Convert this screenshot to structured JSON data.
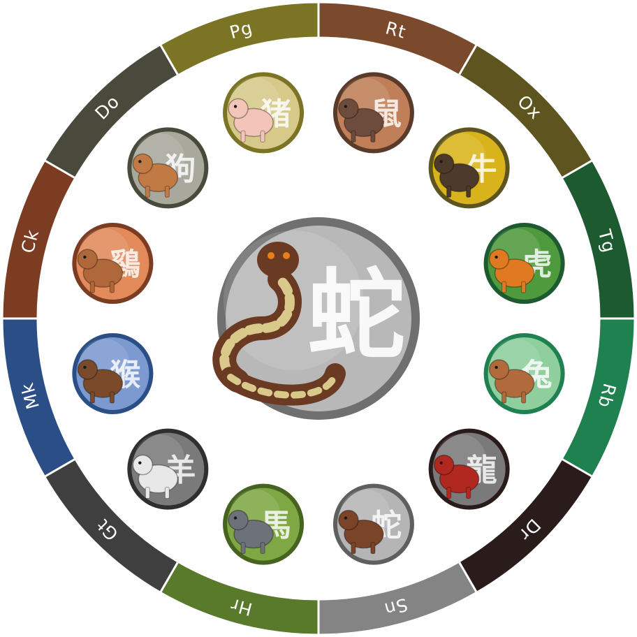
{
  "wheel": {
    "segments": [
      {
        "label": "Rt",
        "color": "#7b4a2d"
      },
      {
        "label": "Ox",
        "color": "#5e5420"
      },
      {
        "label": "Tg",
        "color": "#1d5a30"
      },
      {
        "label": "Rb",
        "color": "#1f8050"
      },
      {
        "label": "Dr",
        "color": "#2b1c1c"
      },
      {
        "label": "Sn",
        "color": "#848484"
      },
      {
        "label": "Hr",
        "color": "#587a2a"
      },
      {
        "label": "Gt",
        "color": "#3f3f3f"
      },
      {
        "label": "Mk",
        "color": "#2c4e86"
      },
      {
        "label": "Ck",
        "color": "#7c3c22"
      },
      {
        "label": "Do",
        "color": "#4a4a3c"
      },
      {
        "label": "Pg",
        "color": "#7b7424"
      }
    ]
  },
  "medals": [
    {
      "animal": "rat",
      "char": "鼠",
      "bg": "#c07f58",
      "ring": "#5a3a28",
      "body": "#6d4c3d"
    },
    {
      "animal": "ox",
      "char": "牛",
      "bg": "#d9b31b",
      "ring": "#5e5420",
      "body": "#4e3a2a"
    },
    {
      "animal": "tiger",
      "char": "虎",
      "bg": "#4f9a3d",
      "ring": "#1d5a30",
      "body": "#e07a22"
    },
    {
      "animal": "rabbit",
      "char": "兔",
      "bg": "#8fcf9e",
      "ring": "#1f8050",
      "body": "#b06a3c"
    },
    {
      "animal": "dragon",
      "char": "龍",
      "bg": "#7a7a7a",
      "ring": "#2b1c1c",
      "body": "#b0281f"
    },
    {
      "animal": "snake",
      "char": "蛇",
      "bg": "#b5b5b5",
      "ring": "#5f5f5f",
      "body": "#7a4428"
    },
    {
      "animal": "horse",
      "char": "馬",
      "bg": "#7fa844",
      "ring": "#46631f",
      "body": "#6d7178"
    },
    {
      "animal": "goat",
      "char": "羊",
      "bg": "#7a7a7a",
      "ring": "#2f2f2f",
      "body": "#e8e8e8"
    },
    {
      "animal": "monkey",
      "char": "猴",
      "bg": "#7c9ad0",
      "ring": "#2c4e86",
      "body": "#7a4a2a"
    },
    {
      "animal": "rooster",
      "char": "鷄",
      "bg": "#e28a5a",
      "ring": "#7c3c22",
      "body": "#b0683a"
    },
    {
      "animal": "dog",
      "char": "狗",
      "bg": "#a8a89c",
      "ring": "#4a4a3c",
      "body": "#c27a45"
    },
    {
      "animal": "pig",
      "char": "猪",
      "bg": "#d6c98a",
      "ring": "#7b7424",
      "body": "#f3c4b8"
    }
  ],
  "center": {
    "animal": "snake",
    "char": "蛇",
    "bg": "#b8b8b8",
    "ring": "#6f6f6f"
  }
}
